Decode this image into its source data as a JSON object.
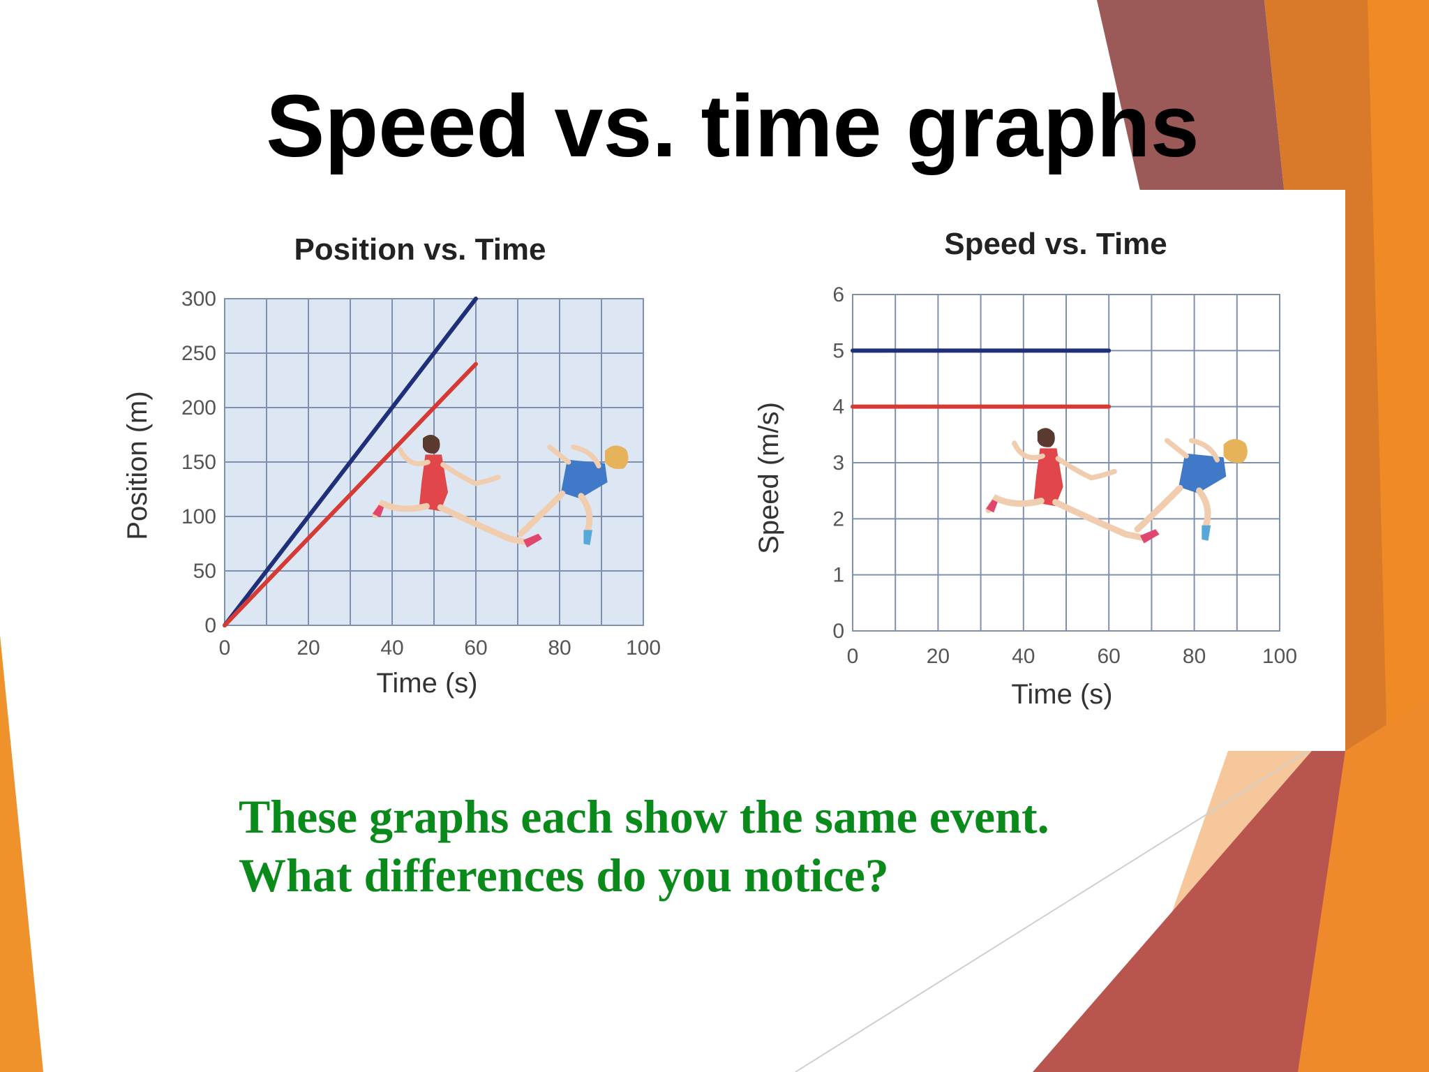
{
  "slide": {
    "title": "Speed vs. time graphs",
    "caption_lines": [
      "These graphs each show the same event.",
      "What differences do you notice?"
    ],
    "colors": {
      "title": "#000000",
      "caption": "#0a8a1a",
      "accent_orange": "#f08a24",
      "accent_rust": "#b8554f",
      "accent_brown": "#9b5a58"
    }
  },
  "chart_data": [
    {
      "type": "line",
      "title": "Position vs. Time",
      "xlabel": "Time (s)",
      "ylabel": "Position (m)",
      "xlim": [
        0,
        100
      ],
      "ylim": [
        0,
        300
      ],
      "xticks": [
        0,
        20,
        40,
        60,
        80,
        100
      ],
      "yticks": [
        0,
        50,
        100,
        150,
        200,
        250,
        300
      ],
      "x_grid_step": 10,
      "grid": true,
      "background": "#dde7f3",
      "series": [
        {
          "color": "#1f2f7a",
          "x": [
            0,
            60
          ],
          "y": [
            0,
            300
          ]
        },
        {
          "color": "#d63a34",
          "x": [
            0,
            60
          ],
          "y": [
            0,
            240
          ]
        }
      ],
      "illustration": "two-runners"
    },
    {
      "type": "line",
      "title": "Speed vs. Time",
      "xlabel": "Time (s)",
      "ylabel": "Speed (m/s)",
      "xlim": [
        0,
        100
      ],
      "ylim": [
        0,
        6
      ],
      "xticks": [
        0,
        20,
        40,
        60,
        80,
        100
      ],
      "yticks": [
        0,
        1,
        2,
        3,
        4,
        5,
        6
      ],
      "x_grid_step": 10,
      "grid": true,
      "background": "#ffffff",
      "series": [
        {
          "color": "#1f2f7a",
          "x": [
            0,
            60
          ],
          "y": [
            5,
            5
          ]
        },
        {
          "color": "#d63a34",
          "x": [
            0,
            60
          ],
          "y": [
            4,
            4
          ]
        }
      ],
      "illustration": "two-runners"
    }
  ]
}
